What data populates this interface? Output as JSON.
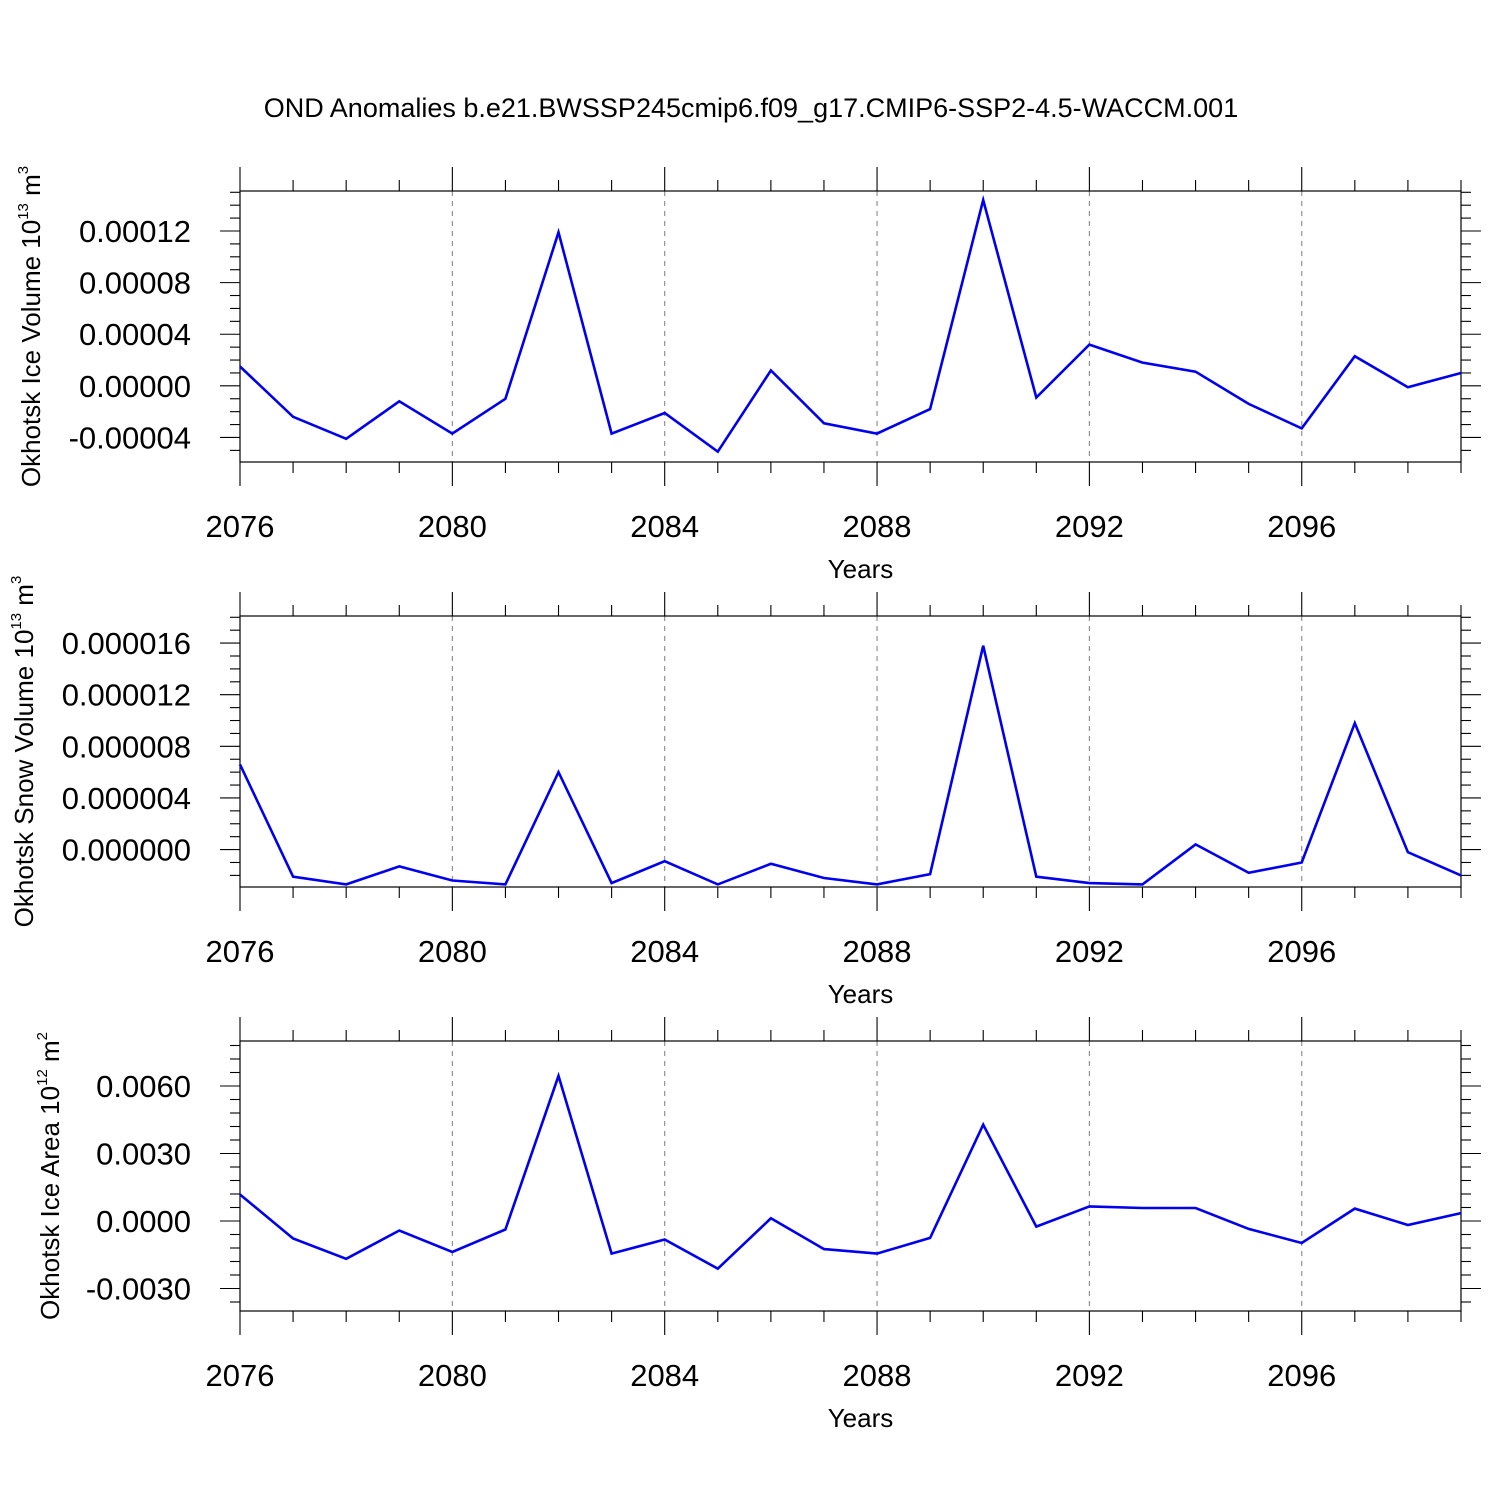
{
  "title": "OND Anomalies b.e21.BWSSP245cmip6.f09_g17.CMIP6-SSP2-4.5-WACCM.001",
  "line_color": "#0000ee",
  "chart_data": [
    {
      "type": "line",
      "xlabel": "Years",
      "ylabel": {
        "text": "Okhotsk Ice Volume 10",
        "exponent": "13",
        "unit": "m",
        "unit_exponent": "3"
      },
      "x": [
        2076,
        2077,
        2078,
        2079,
        2080,
        2081,
        2082,
        2083,
        2084,
        2085,
        2086,
        2087,
        2088,
        2089,
        2090,
        2091,
        2092,
        2093,
        2094,
        2095,
        2096,
        2097,
        2098,
        2099
      ],
      "values": [
        1.5e-05,
        -2.4e-05,
        -4.1e-05,
        -1.2e-05,
        -3.7e-05,
        -1e-05,
        0.000119,
        -3.7e-05,
        -2.1e-05,
        -5.1e-05,
        1.2e-05,
        -2.9e-05,
        -3.7e-05,
        -1.8e-05,
        0.000144,
        -9e-06,
        3.2e-05,
        1.8e-05,
        1.1e-05,
        -1.4e-05,
        -3.3e-05,
        2.3e-05,
        -1e-06,
        1e-05
      ],
      "xlim": [
        2076,
        2099
      ],
      "ylim": [
        -5.9e-05,
        0.000151
      ],
      "x_major_ticks": [
        2076,
        2080,
        2084,
        2088,
        2092,
        2096
      ],
      "x_tick_labels": [
        "2076",
        "2080",
        "2084",
        "2088",
        "2092",
        "2096"
      ],
      "y_major_ticks": [
        -4e-05,
        0.0,
        4e-05,
        8e-05,
        0.00012
      ],
      "y_tick_labels": [
        "-0.00004",
        "0.00000",
        "0.00004",
        "0.00008",
        "0.00012"
      ],
      "y_minor_step": 1e-05,
      "grid": "vertical dashed at major x ticks"
    },
    {
      "type": "line",
      "xlabel": "Years",
      "ylabel": {
        "text": "Okhotsk Snow Volume 10",
        "exponent": "13",
        "unit": "m",
        "unit_exponent": "3"
      },
      "x": [
        2076,
        2077,
        2078,
        2079,
        2080,
        2081,
        2082,
        2083,
        2084,
        2085,
        2086,
        2087,
        2088,
        2089,
        2090,
        2091,
        2092,
        2093,
        2094,
        2095,
        2096,
        2097,
        2098,
        2099
      ],
      "values": [
        6.6e-06,
        -2.1e-06,
        -2.7e-06,
        -1.3e-06,
        -2.4e-06,
        -2.7e-06,
        6e-06,
        -2.6e-06,
        -9e-07,
        -2.7e-06,
        -1.1e-06,
        -2.2e-06,
        -2.7e-06,
        -1.9e-06,
        1.58e-05,
        -2.1e-06,
        -2.6e-06,
        -2.7e-06,
        4e-07,
        -1.8e-06,
        -1e-06,
        9.8e-06,
        -2e-07,
        -2e-06
      ],
      "xlim": [
        2076,
        2099
      ],
      "ylim": [
        -2.9e-06,
        1.81e-05
      ],
      "x_major_ticks": [
        2076,
        2080,
        2084,
        2088,
        2092,
        2096
      ],
      "x_tick_labels": [
        "2076",
        "2080",
        "2084",
        "2088",
        "2092",
        "2096"
      ],
      "y_major_ticks": [
        0.0,
        4e-06,
        8e-06,
        1.2e-05,
        1.6e-05
      ],
      "y_tick_labels": [
        "0.000000",
        "0.000004",
        "0.000008",
        "0.000012",
        "0.000016"
      ],
      "y_minor_step": 1e-06,
      "grid": "vertical dashed at major x ticks"
    },
    {
      "type": "line",
      "xlabel": "Years",
      "ylabel": {
        "text": "Okhotsk Ice Area 10",
        "exponent": "12",
        "unit": "m",
        "unit_exponent": "2"
      },
      "x": [
        2076,
        2077,
        2078,
        2079,
        2080,
        2081,
        2082,
        2083,
        2084,
        2085,
        2086,
        2087,
        2088,
        2089,
        2090,
        2091,
        2092,
        2093,
        2094,
        2095,
        2096,
        2097,
        2098,
        2099
      ],
      "values": [
        0.00118,
        -0.00078,
        -0.00168,
        -0.00042,
        -0.00138,
        -0.00038,
        0.00645,
        -0.00145,
        -0.00082,
        -0.00212,
        0.00012,
        -0.00125,
        -0.00145,
        -0.00075,
        0.00428,
        -0.00025,
        0.00065,
        0.00058,
        0.00058,
        -0.00035,
        -0.00098,
        0.00055,
        -0.00018,
        0.00035
      ],
      "xlim": [
        2076,
        2099
      ],
      "ylim": [
        -0.004,
        0.008
      ],
      "x_major_ticks": [
        2076,
        2080,
        2084,
        2088,
        2092,
        2096
      ],
      "x_tick_labels": [
        "2076",
        "2080",
        "2084",
        "2088",
        "2092",
        "2096"
      ],
      "y_major_ticks": [
        -0.003,
        0.0,
        0.003,
        0.006
      ],
      "y_tick_labels": [
        "-0.0030",
        "0.0000",
        "0.0030",
        "0.0060"
      ],
      "y_minor_step": 0.0006,
      "grid": "vertical dashed at major x ticks"
    }
  ]
}
